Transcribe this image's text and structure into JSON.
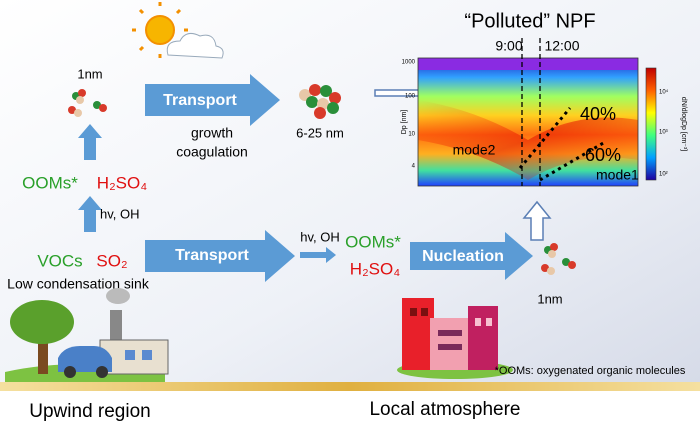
{
  "upwind": {
    "size_top": "1nm",
    "ooms": "OOMs*",
    "h2so4": "H₂SO₄",
    "hv_oh": "hv, OH",
    "vocs": "VOCs",
    "so2": "SO₂",
    "sink": "Low condensation sink",
    "region": "Upwind region"
  },
  "top_path": {
    "transport": "Transport",
    "growth": "growth",
    "coagulation": "coagulation",
    "size": "6-25 nm"
  },
  "bottom_path": {
    "transport": "Transport",
    "hv_oh": "hv, OH",
    "ooms": "OOMs*",
    "h2so4": "H₂SO₄",
    "nucleation": "Nucleation",
    "size": "1nm"
  },
  "heatmap": {
    "title": "“Polluted” NPF",
    "time_left": "9:00",
    "time_right": "12:00",
    "y_label": "Dp [nm]",
    "y_ticks": [
      "1000",
      "100",
      "10",
      "4"
    ],
    "colorbar_label": "dN/dlogDp [cm⁻³]",
    "colorbar_ticks": [
      "10⁴",
      "10³",
      "10²"
    ],
    "share_top": "40%",
    "share_bottom": "60%",
    "mode2": "mode2",
    "mode1": "mode1"
  },
  "footnote": "*OOMs: oxygenated organic molecules",
  "local_region": "Local atmosphere"
}
